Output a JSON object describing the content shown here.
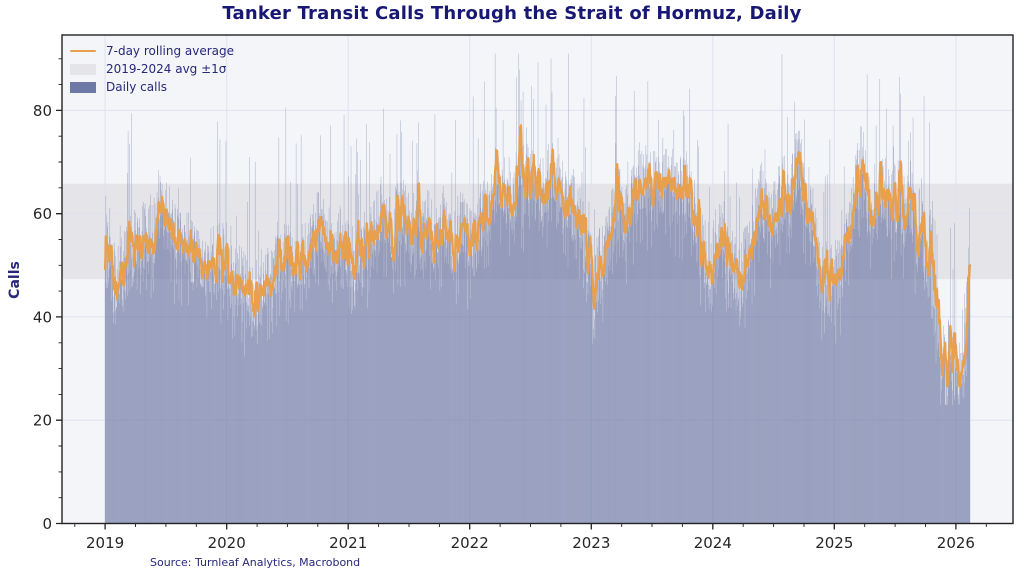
{
  "title": "Tanker Transit Calls Through the Strait of Hormuz, Daily",
  "source_note": "Source: Turnleaf Analytics, Macrobond",
  "legend": {
    "items": [
      {
        "label": "7-day rolling average",
        "swatch": "line"
      },
      {
        "label": "2019-2024 avg ±1σ",
        "swatch": "band"
      },
      {
        "label": "Daily calls",
        "swatch": "bar"
      }
    ]
  },
  "colors": {
    "title_navy": "#181874",
    "text_navy": "#28287a",
    "axis_text": "#262626",
    "axis_line": "#222222",
    "accent_orange": "#e8a04c",
    "bar_blue": "#6e79a5",
    "band_gray": "#e4e4e9",
    "plot_bg": "#f4f5f9",
    "grid": "#dfe2ee",
    "figure_bg": "#ffffff"
  },
  "chart_data": {
    "type": "bar",
    "title": "Tanker Transit Calls Through the Strait of Hormuz, Daily",
    "xlabel": "",
    "ylabel": "Calls",
    "x_tick_labels": [
      "2019",
      "2020",
      "2021",
      "2022",
      "2023",
      "2024",
      "2025",
      "2026"
    ],
    "x_tick_years": [
      2019,
      2020,
      2021,
      2022,
      2023,
      2024,
      2025,
      2026
    ],
    "y_ticks": [
      0,
      20,
      40,
      60,
      80
    ],
    "y_minor_step": 5,
    "x_minor_step": 0.25,
    "xlim_years": [
      2018.645,
      2026.47
    ],
    "ylim": [
      0,
      94.6
    ],
    "grid": true,
    "legend_position": "upper left",
    "band": {
      "label": "2019-2024 avg ±1σ",
      "low": 47.3,
      "high": 65.8
    },
    "series": [
      {
        "name": "Daily calls",
        "type": "bar"
      },
      {
        "name": "7-day rolling average",
        "type": "line",
        "window": 7
      }
    ],
    "daily": {
      "start_year": 2019.0,
      "days": 2600,
      "days_per_year": 365.2425,
      "noise": {
        "seed": 42,
        "uniform": 7.5,
        "friday_dip": 6.5,
        "midweek_dip": 3,
        "spike_prob": 0.055,
        "spike_min": 9,
        "spike_max": 24,
        "clamp": [
          23,
          91
        ]
      }
    },
    "rolling_avg_anchors": {
      "t": [
        2019.0,
        2019.04,
        2019.08,
        2019.16,
        2019.25,
        2019.33,
        2019.4,
        2019.46,
        2019.53,
        2019.62,
        2019.7,
        2019.78,
        2019.87,
        2019.95,
        2020.02,
        2020.1,
        2020.16,
        2020.21,
        2020.29,
        2020.37,
        2020.45,
        2020.54,
        2020.62,
        2020.7,
        2020.75,
        2020.83,
        2020.9,
        2020.96,
        2021.02,
        2021.06,
        2021.12,
        2021.2,
        2021.28,
        2021.34,
        2021.45,
        2021.52,
        2021.6,
        2021.66,
        2021.71,
        2021.8,
        2021.87,
        2021.94,
        2022.02,
        2022.08,
        2022.14,
        2022.2,
        2022.26,
        2022.33,
        2022.42,
        2022.5,
        2022.58,
        2022.66,
        2022.7,
        2022.74,
        2022.83,
        2022.87,
        2022.91,
        2022.95,
        2022.99,
        2023.02,
        2023.05,
        2023.07,
        2023.09,
        2023.16,
        2023.24,
        2023.28,
        2023.32,
        2023.4,
        2023.49,
        2023.53,
        2023.57,
        2023.62,
        2023.68,
        2023.73,
        2023.81,
        2023.9,
        2023.98,
        2024.06,
        2024.14,
        2024.23,
        2024.31,
        2024.39,
        2024.47,
        2024.56,
        2024.64,
        2024.7,
        2024.76,
        2024.8,
        2024.88,
        2024.97,
        2025.05,
        2025.13,
        2025.18,
        2025.22,
        2025.27,
        2025.33,
        2025.4,
        2025.47,
        2025.53,
        2025.58,
        2025.63,
        2025.68,
        2025.72,
        2025.76,
        2025.79,
        2025.82,
        2025.86,
        2025.875,
        2025.9,
        2025.92,
        2025.945,
        2025.97,
        2025.995,
        2026.02,
        2026.045,
        2026.06,
        2026.08,
        2026.1,
        2026.12
      ],
      "v": [
        53,
        50.5,
        47,
        50,
        54,
        55.5,
        57.5,
        62.5,
        57,
        54.5,
        52.5,
        51.5,
        50.5,
        52.5,
        51,
        47.5,
        45,
        43.5,
        46,
        48.5,
        52.5,
        51.5,
        51,
        55.5,
        57.5,
        55,
        53.5,
        55.5,
        51.5,
        49,
        52.5,
        54.5,
        61.5,
        57.5,
        59.5,
        57.5,
        55.5,
        58,
        53.5,
        56.5,
        55,
        57.5,
        53.5,
        58,
        62,
        66.2,
        65.5,
        63.6,
        65.5,
        66.8,
        64.9,
        67.4,
        68.7,
        64.9,
        63,
        61,
        57.8,
        54.6,
        52.7,
        42,
        50,
        55.9,
        51.4,
        58.5,
        63,
        57,
        61,
        66.8,
        65.5,
        68,
        67,
        68,
        64.5,
        63.6,
        65.5,
        52.7,
        50.8,
        55.9,
        50.1,
        47.6,
        54.6,
        63.6,
        57.2,
        63.6,
        64.9,
        70,
        64,
        62,
        47.6,
        46.9,
        49.5,
        56.5,
        64,
        72,
        64,
        62,
        64.5,
        61,
        65,
        60,
        64,
        55,
        60,
        47,
        55,
        43,
        41.5,
        31,
        36,
        28,
        34,
        30,
        32.5,
        28.5,
        32,
        29,
        38,
        50,
        58
      ]
    }
  }
}
